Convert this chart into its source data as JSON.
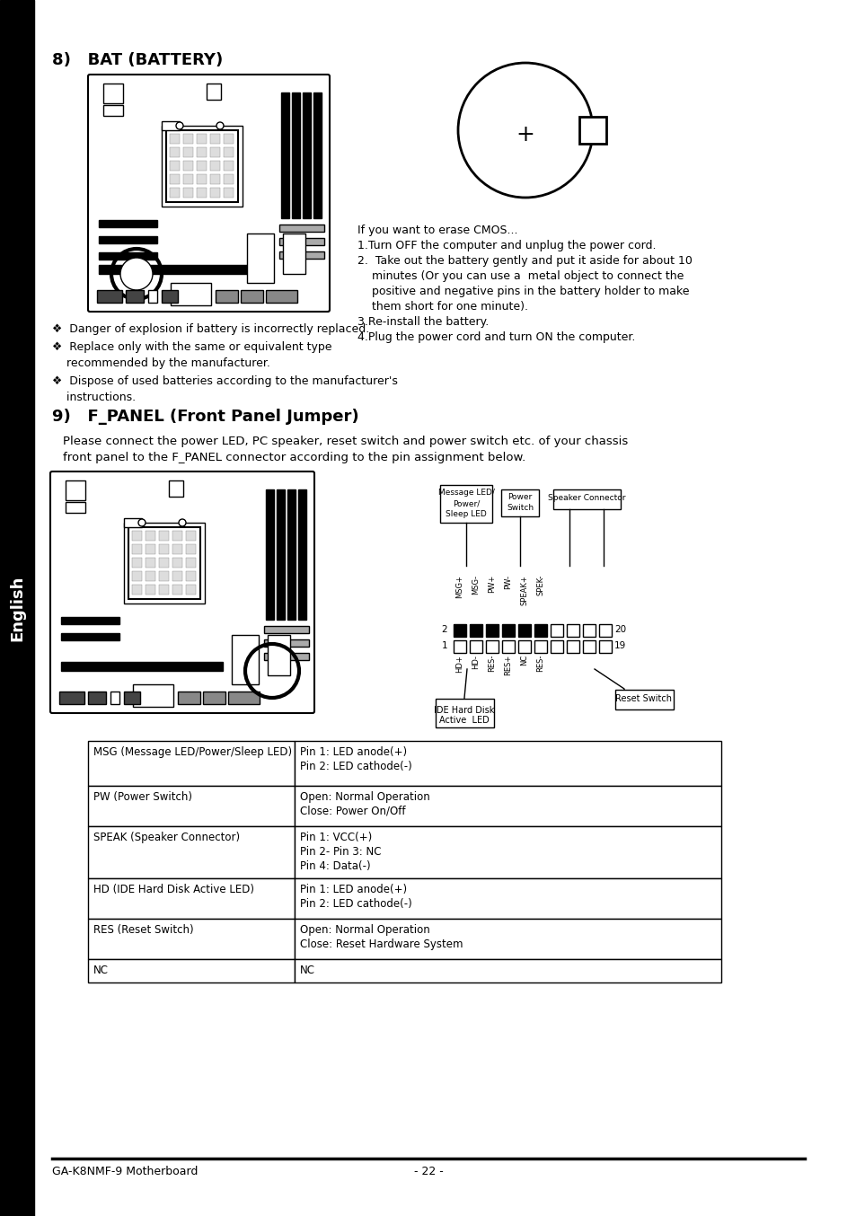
{
  "bg_color": "#ffffff",
  "sidebar_color": "#000000",
  "sidebar_text": "English",
  "title_8": "8)   BAT (BATTERY)",
  "title_9": "9)   F_PANEL (Front Panel Jumper)",
  "section9_intro_1": "Please connect the power LED, PC speaker, reset switch and power switch etc. of your chassis",
  "section9_intro_2": "front panel to the F_PANEL connector according to the pin assignment below.",
  "bullets": [
    "❖  Danger of explosion if battery is incorrectly replaced.",
    "❖  Replace only with the same or equivalent type",
    "    recommended by the manufacturer.",
    "❖  Dispose of used batteries according to the manufacturer's",
    "    instructions."
  ],
  "instr_lines": [
    "If you want to erase CMOS...",
    "1.Turn OFF the computer and unplug the power cord.",
    "2.  Take out the battery gently and put it aside for about 10",
    "    minutes (Or you can use a  metal object to connect the",
    "    positive and negative pins in the battery holder to make",
    "    them short for one minute).",
    "3.Re-install the battery.",
    "4.Plug the power cord and turn ON the computer."
  ],
  "table_rows": [
    [
      "MSG (Message LED/Power/Sleep LED)",
      "Pin 1: LED anode(+)",
      "Pin 2: LED cathode(-)"
    ],
    [
      "PW (Power Switch)",
      "Open: Normal Operation",
      "Close: Power On/Off"
    ],
    [
      "SPEAK (Speaker Connector)",
      "Pin 1: VCC(+)",
      "Pin 2- Pin 3: NC",
      "Pin 4: Data(-)"
    ],
    [
      "HD (IDE Hard Disk Active LED)",
      "Pin 1: LED anode(+)",
      "Pin 2: LED cathode(-)"
    ],
    [
      "RES (Reset Switch)",
      "Open: Normal Operation",
      "Close: Reset Hardware System"
    ],
    [
      "NC",
      "NC"
    ]
  ],
  "footer_left": "GA-K8NMF-9 Motherboard",
  "footer_center": "- 22 -",
  "connector_labels_top": [
    "MSG+",
    "MSG-",
    "PW+",
    "PW-",
    "SPEAK+",
    "SPEK-"
  ],
  "connector_labels_bot": [
    "HD+",
    "HD-",
    "RES-",
    "RES+",
    "NC",
    "RES-"
  ]
}
